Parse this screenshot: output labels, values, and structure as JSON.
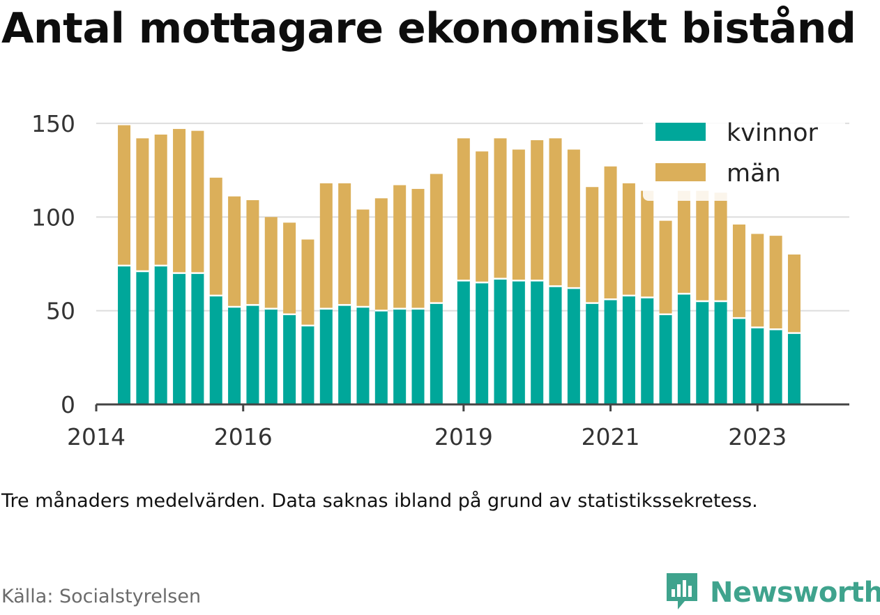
{
  "header": {
    "title": "Antal mottagare ekonomiskt bistånd"
  },
  "footer": {
    "note": "Tre månaders medelvärden. Data saknas ibland på grund av statistikssekretess.",
    "source": "Källa: Socialstyrelsen",
    "brand": "Newsworthy",
    "brand_icon": "newsworthy-logo-icon"
  },
  "colors": {
    "kvinnor": "#00a79a",
    "man": "#dbaf5a",
    "axis": "#444444",
    "grid": "#dddddd",
    "brand": "#3fa38d"
  },
  "chart_data": {
    "type": "bar",
    "stacked": true,
    "title": "Antal mottagare ekonomiskt bistånd",
    "xlabel": "",
    "ylabel": "",
    "ylim": [
      0,
      160
    ],
    "yticks": [
      0,
      50,
      100,
      150
    ],
    "xticks": [
      "2014",
      "2016",
      "2019",
      "2021",
      "2023"
    ],
    "xlim": [
      2014.0,
      2024.25
    ],
    "grid": true,
    "legend_position": "top-right",
    "x": [
      2014.38,
      2014.63,
      2014.88,
      2015.13,
      2015.38,
      2015.63,
      2015.88,
      2016.13,
      2016.38,
      2016.63,
      2016.88,
      2017.13,
      2017.38,
      2017.63,
      2017.88,
      2018.13,
      2018.38,
      2018.63,
      2019.0,
      2019.25,
      2019.5,
      2019.75,
      2020.0,
      2020.25,
      2020.5,
      2020.75,
      2021.0,
      2021.25,
      2021.5,
      2021.75,
      2022.0,
      2022.25,
      2022.5,
      2022.75,
      2023.0,
      2023.25,
      2023.5
    ],
    "series": [
      {
        "name": "kvinnor",
        "color": "#00a79a",
        "values": [
          74,
          71,
          74,
          70,
          70,
          58,
          52,
          53,
          51,
          48,
          42,
          51,
          53,
          52,
          50,
          51,
          51,
          54,
          66,
          65,
          67,
          66,
          66,
          63,
          62,
          54,
          56,
          58,
          57,
          48,
          59,
          55,
          55,
          46,
          41,
          40,
          38
        ]
      },
      {
        "name": "män",
        "color": "#dbaf5a",
        "values": [
          75,
          71,
          70,
          77,
          76,
          63,
          59,
          56,
          49,
          49,
          46,
          67,
          65,
          52,
          60,
          66,
          64,
          69,
          76,
          70,
          75,
          70,
          75,
          79,
          74,
          62,
          71,
          60,
          57,
          50,
          55,
          59,
          58,
          50,
          50,
          50,
          42
        ]
      }
    ]
  }
}
